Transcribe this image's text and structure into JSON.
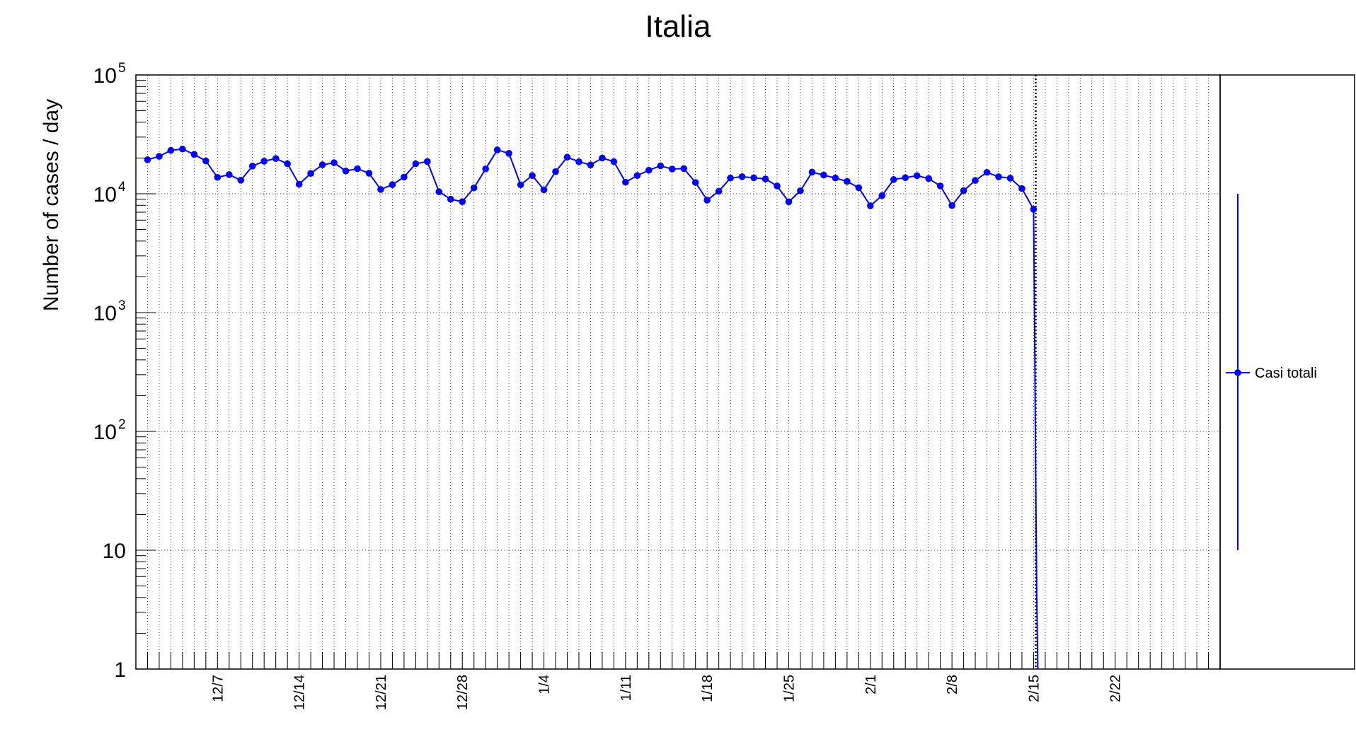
{
  "chart_data": {
    "type": "line",
    "title": "Italia",
    "xlabel": "",
    "ylabel": "Number of cases / day",
    "y_scale": "log",
    "ylim": [
      1,
      100000
    ],
    "grid": true,
    "legend_position": "right",
    "x_unit": "date",
    "xlim": [
      "2020-11-30",
      "2021-03-03"
    ],
    "x_ticks": [
      {
        "date": "2020-12-07",
        "label": "12/7"
      },
      {
        "date": "2020-12-14",
        "label": "12/14"
      },
      {
        "date": "2020-12-21",
        "label": "12/21"
      },
      {
        "date": "2020-12-28",
        "label": "12/28"
      },
      {
        "date": "2021-01-04",
        "label": "1/4"
      },
      {
        "date": "2021-01-11",
        "label": "1/11"
      },
      {
        "date": "2021-01-18",
        "label": "1/18"
      },
      {
        "date": "2021-01-25",
        "label": "1/25"
      },
      {
        "date": "2021-02-01",
        "label": "2/1"
      },
      {
        "date": "2021-02-08",
        "label": "2/8"
      },
      {
        "date": "2021-02-15",
        "label": "2/15"
      },
      {
        "date": "2021-02-22",
        "label": "2/22"
      }
    ],
    "y_ticks": [
      {
        "value": 1,
        "base": "1",
        "exp": ""
      },
      {
        "value": 10,
        "base": "10",
        "exp": ""
      },
      {
        "value": 100,
        "base": "10",
        "exp": "2"
      },
      {
        "value": 1000,
        "base": "10",
        "exp": "3"
      },
      {
        "value": 10000,
        "base": "10",
        "exp": "4"
      },
      {
        "value": 100000,
        "base": "10",
        "exp": "5"
      }
    ],
    "reference_line": {
      "date": "2021-02-15"
    },
    "series": [
      {
        "name": "Casi totali",
        "color": "#0000ff",
        "x": [
          "2020-12-01",
          "2020-12-02",
          "2020-12-03",
          "2020-12-04",
          "2020-12-05",
          "2020-12-06",
          "2020-12-07",
          "2020-12-08",
          "2020-12-09",
          "2020-12-10",
          "2020-12-11",
          "2020-12-12",
          "2020-12-13",
          "2020-12-14",
          "2020-12-15",
          "2020-12-16",
          "2020-12-17",
          "2020-12-18",
          "2020-12-19",
          "2020-12-20",
          "2020-12-21",
          "2020-12-22",
          "2020-12-23",
          "2020-12-24",
          "2020-12-25",
          "2020-12-26",
          "2020-12-27",
          "2020-12-28",
          "2020-12-29",
          "2020-12-30",
          "2020-12-31",
          "2021-01-01",
          "2021-01-02",
          "2021-01-03",
          "2021-01-04",
          "2021-01-05",
          "2021-01-06",
          "2021-01-07",
          "2021-01-08",
          "2021-01-09",
          "2021-01-10",
          "2021-01-11",
          "2021-01-12",
          "2021-01-13",
          "2021-01-14",
          "2021-01-15",
          "2021-01-16",
          "2021-01-17",
          "2021-01-18",
          "2021-01-19",
          "2021-01-20",
          "2021-01-21",
          "2021-01-22",
          "2021-01-23",
          "2021-01-24",
          "2021-01-25",
          "2021-01-26",
          "2021-01-27",
          "2021-01-28",
          "2021-01-29",
          "2021-01-30",
          "2021-01-31",
          "2021-02-01",
          "2021-02-02",
          "2021-02-03",
          "2021-02-04",
          "2021-02-05",
          "2021-02-06",
          "2021-02-07",
          "2021-02-08",
          "2021-02-09",
          "2021-02-10",
          "2021-02-11",
          "2021-02-12",
          "2021-02-13",
          "2021-02-14",
          "2021-02-15"
        ],
        "values": [
          19350,
          20650,
          23200,
          23800,
          21450,
          18890,
          13750,
          14500,
          13000,
          17100,
          18800,
          19800,
          17900,
          12030,
          14840,
          17550,
          18250,
          15550,
          16260,
          14900,
          10870,
          11940,
          13820,
          17900,
          18700,
          10400,
          9000,
          8580,
          11220,
          16200,
          23400,
          21900,
          11910,
          14240,
          10800,
          15360,
          20330,
          18600,
          17500,
          20000,
          18650,
          12530,
          14240,
          15780,
          17190,
          16150,
          16300,
          12450,
          8830,
          10500,
          13570,
          13930,
          13630,
          13330,
          11630,
          8560,
          10600,
          15200,
          14370,
          13570,
          12710,
          11250,
          7930,
          9660,
          13190,
          13660,
          14200,
          13440,
          11640,
          7970,
          10630,
          12950,
          15140,
          13910,
          13530,
          11070,
          7400
        ]
      }
    ],
    "drop_tail": [
      {
        "date": "2021-02-15",
        "value": 7400
      },
      {
        "date": "2021-02-15",
        "value": 700
      },
      {
        "date": "2021-02-15",
        "value": 40
      },
      {
        "date": "2021-02-15",
        "value": 4
      },
      {
        "date": "2021-02-15",
        "value": 1
      }
    ]
  }
}
